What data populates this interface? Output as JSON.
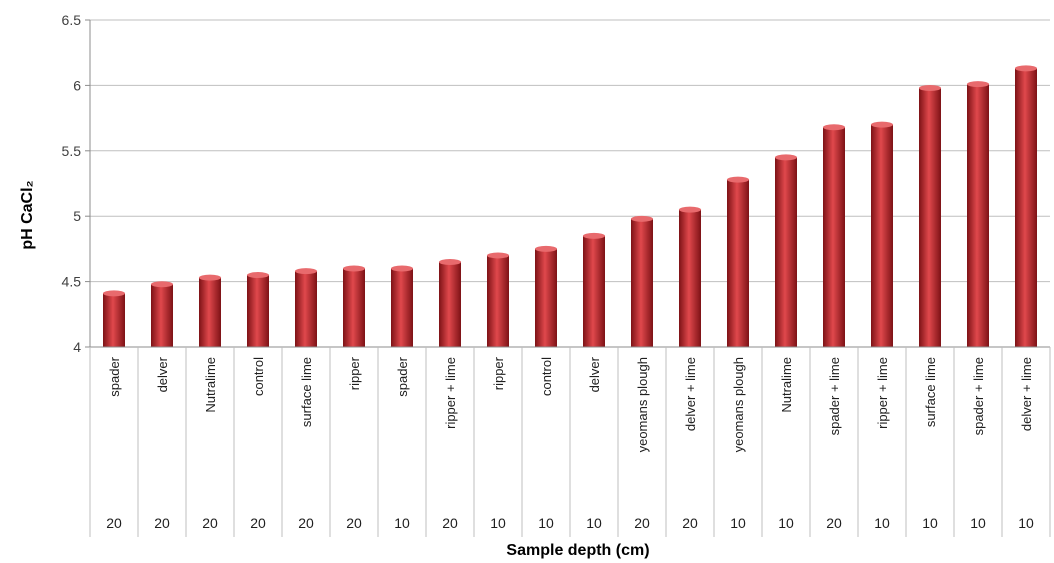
{
  "chart_data": {
    "type": "bar",
    "ylabel": "pH CaCl₂",
    "xlabel": "Sample depth (cm)",
    "ylim": [
      4,
      6.5
    ],
    "yticks": [
      "4",
      "4.5",
      "5",
      "5.5",
      "6",
      "6.5"
    ],
    "grid": true,
    "legend": "none",
    "bar_color": "#c0272d",
    "categories": [
      {
        "label": "spader",
        "depth": "20"
      },
      {
        "label": "delver",
        "depth": "20"
      },
      {
        "label": "Nutralime",
        "depth": "20"
      },
      {
        "label": "control",
        "depth": "20"
      },
      {
        "label": "surface lime",
        "depth": "20"
      },
      {
        "label": "ripper",
        "depth": "20"
      },
      {
        "label": "spader",
        "depth": "10"
      },
      {
        "label": "ripper + lime",
        "depth": "20"
      },
      {
        "label": "ripper",
        "depth": "10"
      },
      {
        "label": "control",
        "depth": "10"
      },
      {
        "label": "delver",
        "depth": "10"
      },
      {
        "label": "yeomans plough",
        "depth": "20"
      },
      {
        "label": "delver + lime",
        "depth": "20"
      },
      {
        "label": "yeomans plough",
        "depth": "10"
      },
      {
        "label": "Nutralime",
        "depth": "10"
      },
      {
        "label": "spader + lime",
        "depth": "20"
      },
      {
        "label": "ripper + lime",
        "depth": "10"
      },
      {
        "label": "surface lime",
        "depth": "10"
      },
      {
        "label": "spader + lime",
        "depth": "10"
      },
      {
        "label": "delver + lime",
        "depth": "10"
      }
    ],
    "values": [
      4.41,
      4.48,
      4.53,
      4.55,
      4.58,
      4.6,
      4.6,
      4.65,
      4.7,
      4.75,
      4.85,
      4.98,
      5.05,
      5.28,
      5.45,
      5.68,
      5.7,
      5.98,
      6.01,
      6.13
    ]
  }
}
